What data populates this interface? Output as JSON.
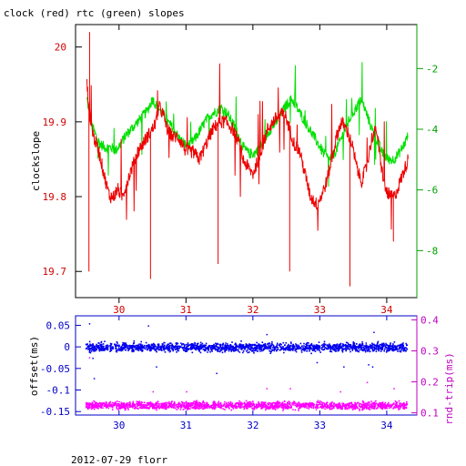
{
  "title": "clock (red) rtc (green) slopes",
  "footer": "2012-07-29 florr",
  "colors": {
    "clock": "#ee0000",
    "rtc": "#00e000",
    "offset": "#0000ee",
    "rtt": "#ff00ff",
    "axis_black": "#000000",
    "axis_green": "#00a000",
    "axis_blue": "#0000c8",
    "axis_magenta": "#c000c0",
    "tick_red": "#d00000"
  },
  "chart_data": [
    {
      "type": "line",
      "title": "clock (red) rtc (green) slopes",
      "xlabel": "",
      "ylabel": "clockslope",
      "y2label": "",
      "xlim": [
        29.35,
        34.45
      ],
      "ylim": [
        19.665,
        20.03
      ],
      "y2lim": [
        -9.55,
        -0.55
      ],
      "x_ticks": [
        30,
        31,
        32,
        33,
        34
      ],
      "y_ticks": [
        19.7,
        19.8,
        19.9,
        20
      ],
      "y_tick_labels": [
        "19.7",
        "19.8",
        "19.9",
        "20"
      ],
      "y2_ticks": [
        -8,
        -6,
        -4,
        -2
      ],
      "y2_tick_labels": [
        "-8",
        "-6",
        "-4",
        "-2"
      ],
      "grid": false,
      "series": [
        {
          "name": "clock",
          "axis": "left",
          "x": [
            29.52,
            29.55,
            29.58,
            29.62,
            29.66,
            29.7,
            29.75,
            29.8,
            29.86,
            29.92,
            29.98,
            30.05,
            30.12,
            30.2,
            30.28,
            30.35,
            30.42,
            30.5,
            30.55,
            30.6,
            30.66,
            30.72,
            30.8,
            30.88,
            30.95,
            31.0,
            31.1,
            31.2,
            31.3,
            31.4,
            31.5,
            31.6,
            31.7,
            31.8,
            31.85,
            31.92,
            32.0,
            32.08,
            32.15,
            32.22,
            32.3,
            32.4,
            32.48,
            32.55,
            32.62,
            32.7,
            32.78,
            32.86,
            32.95,
            33.02,
            33.1,
            33.18,
            33.25,
            33.32,
            33.4,
            33.48,
            33.55,
            33.62,
            33.7,
            33.78,
            33.85,
            33.9,
            33.98,
            34.05,
            34.12,
            34.2,
            34.28,
            34.32
          ],
          "y": [
            19.95,
            19.92,
            19.9,
            19.88,
            19.87,
            19.86,
            19.84,
            19.82,
            19.8,
            19.8,
            19.81,
            19.8,
            19.82,
            19.84,
            19.86,
            19.87,
            19.88,
            19.89,
            19.9,
            19.92,
            19.91,
            19.89,
            19.88,
            19.88,
            19.87,
            19.86,
            19.86,
            19.85,
            19.87,
            19.89,
            19.9,
            19.9,
            19.89,
            19.87,
            19.85,
            19.84,
            19.83,
            19.85,
            19.87,
            19.89,
            19.9,
            19.91,
            19.91,
            19.89,
            19.87,
            19.86,
            19.83,
            19.8,
            19.79,
            19.8,
            19.82,
            19.85,
            19.88,
            19.9,
            19.89,
            19.87,
            19.84,
            19.82,
            19.84,
            19.88,
            19.89,
            19.85,
            19.81,
            19.8,
            19.8,
            19.82,
            19.84,
            19.85
          ]
        },
        {
          "name": "rtc",
          "axis": "right",
          "x": [
            29.52,
            29.58,
            29.65,
            29.72,
            29.8,
            29.88,
            29.95,
            30.02,
            30.1,
            30.18,
            30.26,
            30.34,
            30.42,
            30.5,
            30.58,
            30.66,
            30.74,
            30.82,
            30.9,
            30.98,
            31.06,
            31.14,
            31.22,
            31.3,
            31.38,
            31.46,
            31.54,
            31.62,
            31.7,
            31.78,
            31.86,
            31.94,
            32.02,
            32.1,
            32.18,
            32.26,
            32.34,
            32.42,
            32.5,
            32.58,
            32.66,
            32.74,
            32.82,
            32.9,
            32.98,
            33.06,
            33.14,
            33.22,
            33.3,
            33.38,
            33.46,
            33.54,
            33.62,
            33.7,
            33.78,
            33.86,
            33.94,
            34.02,
            34.1,
            34.18,
            34.26,
            34.32
          ],
          "y": [
            -3.0,
            -3.8,
            -4.2,
            -4.5,
            -4.6,
            -4.6,
            -4.7,
            -4.5,
            -4.2,
            -4.0,
            -3.8,
            -3.6,
            -3.4,
            -3.0,
            -3.3,
            -3.5,
            -3.8,
            -4.0,
            -4.3,
            -4.5,
            -4.5,
            -4.3,
            -4.0,
            -3.7,
            -3.5,
            -3.4,
            -3.3,
            -3.5,
            -3.8,
            -4.2,
            -4.6,
            -4.8,
            -4.8,
            -4.6,
            -4.3,
            -4.0,
            -3.8,
            -3.5,
            -3.2,
            -3.0,
            -3.3,
            -3.6,
            -3.9,
            -4.2,
            -4.5,
            -4.8,
            -5.0,
            -4.8,
            -4.4,
            -4.0,
            -3.6,
            -3.3,
            -3.0,
            -3.5,
            -4.0,
            -4.4,
            -4.8,
            -5.0,
            -5.0,
            -4.8,
            -4.5,
            -4.2
          ]
        }
      ]
    },
    {
      "type": "scatter",
      "xlabel": "",
      "ylabel": "offset(ms)",
      "y2label": "rnd-trip(ms)",
      "xlim": [
        29.35,
        34.45
      ],
      "ylim": [
        -0.158,
        0.072
      ],
      "y2lim": [
        0.093,
        0.413
      ],
      "x_ticks": [
        30,
        31,
        32,
        33,
        34
      ],
      "x_tick_labels": [
        "30",
        "31",
        "32",
        "33",
        "34"
      ],
      "y_ticks": [
        -0.15,
        -0.1,
        -0.05,
        0,
        0.05
      ],
      "y_tick_labels": [
        "-0.15",
        "-0.1",
        "-0.05",
        "0",
        "0.05"
      ],
      "y2_ticks": [
        0.1,
        0.2,
        0.3,
        0.4
      ],
      "y2_tick_labels": [
        "0.1",
        "0.2",
        "0.3",
        "0.4"
      ],
      "grid": false,
      "series": [
        {
          "name": "offset",
          "axis": "left",
          "x_range": [
            29.5,
            34.3
          ],
          "center": 0.0,
          "spread": 0.01,
          "outliers": [
            [
              29.55,
              0.055
            ],
            [
              29.6,
              -0.025
            ],
            [
              29.62,
              -0.072
            ],
            [
              30.43,
              0.05
            ],
            [
              30.55,
              -0.045
            ],
            [
              31.45,
              -0.06
            ],
            [
              32.2,
              0.03
            ],
            [
              32.95,
              -0.035
            ],
            [
              33.35,
              -0.045
            ],
            [
              33.72,
              -0.04
            ],
            [
              33.78,
              -0.045
            ],
            [
              33.8,
              0.035
            ]
          ]
        },
        {
          "name": "rtt",
          "axis": "right",
          "x_range": [
            29.5,
            34.3
          ],
          "center": 0.125,
          "spread": 0.012,
          "outliers": [
            [
              29.55,
              0.28
            ],
            [
              30.5,
              0.17
            ],
            [
              31.0,
              0.17
            ],
            [
              32.2,
              0.18
            ],
            [
              32.55,
              0.18
            ],
            [
              33.3,
              0.17
            ],
            [
              33.7,
              0.2
            ],
            [
              34.1,
              0.18
            ]
          ]
        }
      ]
    }
  ]
}
